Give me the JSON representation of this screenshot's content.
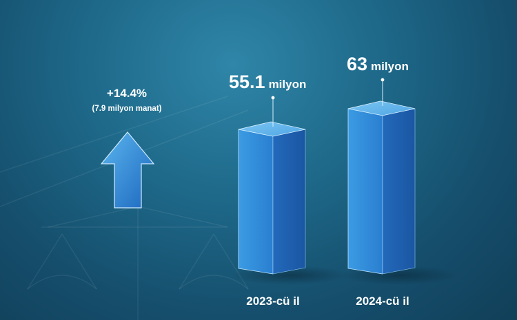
{
  "change": {
    "percent": "+14.4%",
    "amount": "(7.9 milyon manat)"
  },
  "chart_data": {
    "type": "bar",
    "categories": [
      "2023-cü il",
      "2024-cü il"
    ],
    "values": [
      55.1,
      63
    ],
    "value_labels": [
      "55.1",
      "63"
    ],
    "unit": "milyon",
    "ylim": [
      0,
      70
    ],
    "grid": false
  },
  "colors": {
    "bar_front": "#2f86d6",
    "bar_side": "#1c5fae",
    "bar_top": "#5fb6ee",
    "text": "#ffffff"
  }
}
